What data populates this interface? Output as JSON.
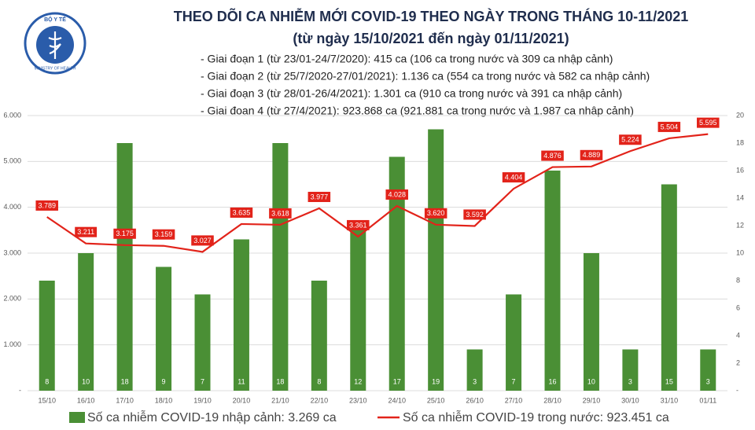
{
  "logo": {
    "top": "BỘ Y TẾ",
    "bottom": "MINISTRY OF HEALTH"
  },
  "chart_data": {
    "type": "bar",
    "title": "THEO DÕI CA NHIỄM MỚI COVID-19 THEO NGÀY TRONG THÁNG 10-11/2021",
    "subtitle": "(từ ngày 15/10/2021 đến ngày 01/11/2021)",
    "notes": [
      "- Giai đoạn 1 (từ 23/01-24/7/2020): 415 ca (106 ca trong nước và 309 ca nhập cảnh)",
      "- Giai đoạn 2 (từ 25/7/2020-27/01/2021): 1.136 ca (554 ca trong nước và 582 ca nhập cảnh)",
      "- Giai đoạn 3 (từ 28/01-26/4/2021): 1.301 ca (910 ca trong nước và 391 ca nhập cảnh)",
      "- Giai đoạn 4 (từ 27/4/2021): 923.868 ca (921.881 ca trong nước và 1.987 ca nhập cảnh)"
    ],
    "categories": [
      "15/10",
      "16/10",
      "17/10",
      "18/10",
      "19/10",
      "20/10",
      "21/10",
      "22/10",
      "23/10",
      "24/10",
      "25/10",
      "26/10",
      "27/10",
      "28/10",
      "29/10",
      "30/10",
      "31/10",
      "01/11"
    ],
    "series": [
      {
        "name": "Số ca nhiễm COVID-19 nhập cảnh: 3.269 ca",
        "type": "bar",
        "axis": "y2",
        "color": "#4a8f35",
        "values": [
          8,
          10,
          18,
          9,
          7,
          11,
          18,
          8,
          12,
          17,
          19,
          3,
          7,
          16,
          10,
          3,
          15,
          3
        ]
      },
      {
        "name": "Số ca nhiễm COVID-19 trong nước: 923.451 ca",
        "type": "line",
        "color": "#e2231a",
        "values": [
          3789,
          3211,
          3175,
          3159,
          3027,
          3635,
          3618,
          3977,
          3361,
          4028,
          3620,
          3592,
          4404,
          4876,
          4889,
          5224,
          5504,
          5595
        ],
        "value_labels": [
          "3.789",
          "3.211",
          "3.175",
          "3.159",
          "3.027",
          "3.635",
          "3.618",
          "3.977",
          "3.361",
          "4.028",
          "3.620",
          "3.592",
          "4.404",
          "4.876",
          "4.889",
          "5.224",
          "5.504",
          "5.595"
        ]
      }
    ],
    "ylim": [
      0,
      6000
    ],
    "yticks": [
      {
        "value": 0,
        "label": "-"
      },
      {
        "value": 1000,
        "label": "1.000"
      },
      {
        "value": 2000,
        "label": "2.000"
      },
      {
        "value": 3000,
        "label": "3.000"
      },
      {
        "value": 4000,
        "label": "4.000"
      },
      {
        "value": 5000,
        "label": "5.000"
      },
      {
        "value": 6000,
        "label": "6.000"
      }
    ],
    "y2lim": [
      0,
      20
    ],
    "y2ticks": [
      {
        "value": 0,
        "label": "-"
      },
      2,
      4,
      6,
      8,
      10,
      12,
      14,
      16,
      18,
      20
    ],
    "grid": true
  }
}
